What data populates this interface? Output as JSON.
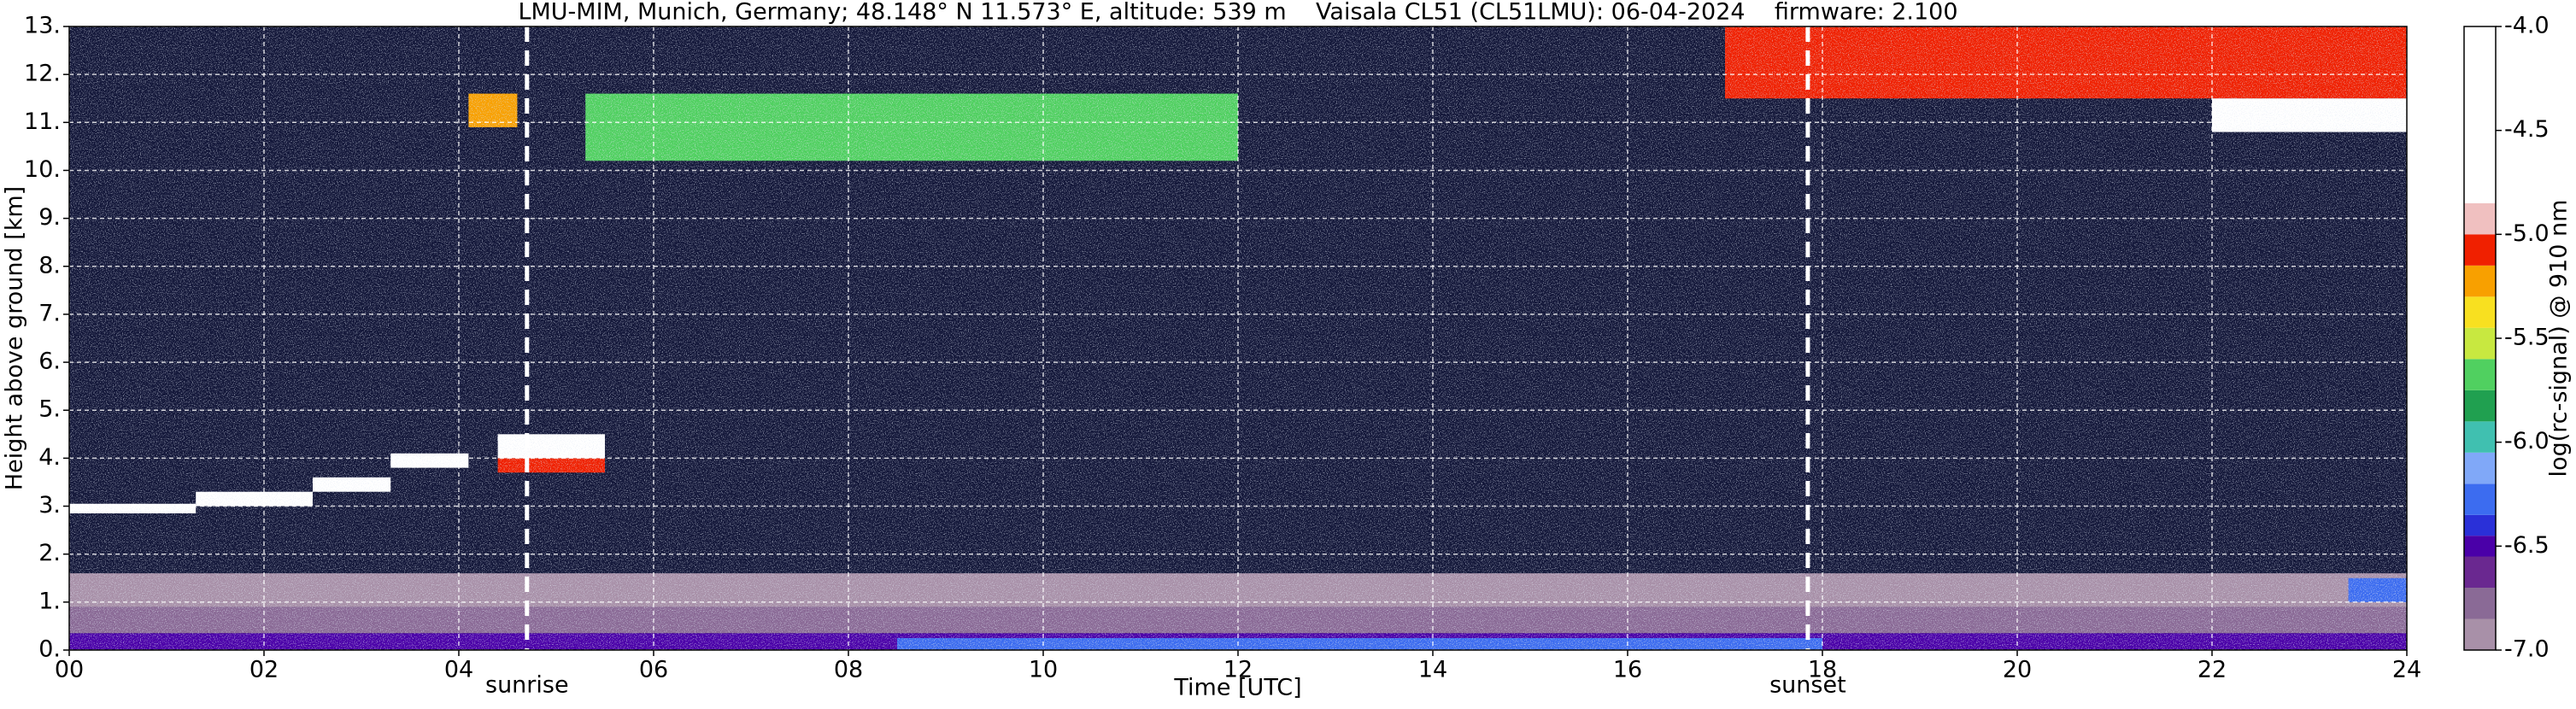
{
  "chart_data": {
    "type": "heatmap",
    "title": "LMU-MIM, Munich, Germany; 48.148° N 11.573° E, altitude: 539 m    Vaisala CL51 (CL51LMU): 06-04-2024    firmware: 2.100",
    "x_label": "Time [UTC]",
    "y_label": "Height above ground [km]",
    "xlim": [
      0,
      24
    ],
    "ylim": [
      0,
      13
    ],
    "xticks": [
      {
        "value": 0,
        "label": "00"
      },
      {
        "value": 2,
        "label": "02"
      },
      {
        "value": 4,
        "label": "04"
      },
      {
        "value": 6,
        "label": "06"
      },
      {
        "value": 8,
        "label": "08"
      },
      10,
      12,
      14,
      16,
      18,
      20,
      22,
      24
    ],
    "yticks": [
      {
        "value": 0,
        "label": "0."
      },
      {
        "value": 1,
        "label": "1."
      },
      {
        "value": 2,
        "label": "2."
      },
      {
        "value": 3,
        "label": "3."
      },
      {
        "value": 4,
        "label": "4."
      },
      {
        "value": 5,
        "label": "5."
      },
      {
        "value": 6,
        "label": "6."
      },
      {
        "value": 7,
        "label": "7."
      },
      {
        "value": 8,
        "label": "8."
      },
      {
        "value": 9,
        "label": "9."
      },
      {
        "value": 10,
        "label": "10."
      },
      {
        "value": 11,
        "label": "11."
      },
      {
        "value": 12,
        "label": "12."
      },
      {
        "value": 13,
        "label": "13."
      }
    ],
    "grid": true,
    "colorbar": {
      "label": "log(rc-signal) @ 910 nm",
      "lim": [
        -7,
        -4
      ],
      "ticks": [
        {
          "value": -4,
          "label": "-4.0"
        },
        {
          "value": -4.5,
          "label": "-4.5"
        },
        {
          "value": -5,
          "label": "-5.0"
        },
        {
          "value": -5.5,
          "label": "-5.5"
        },
        {
          "value": -6,
          "label": "-6.0"
        },
        {
          "value": -6.5,
          "label": "-6.5"
        },
        {
          "value": -7,
          "label": "-7.0"
        }
      ],
      "levels": [
        -7.0,
        -6.85,
        -6.7,
        -6.55,
        -6.45,
        -6.35,
        -6.2,
        -6.05,
        -5.9,
        -5.75,
        -5.6,
        -5.45,
        -5.3,
        -5.15,
        -5.0,
        -4.85,
        -4.0
      ],
      "colors": [
        "#a890a8",
        "#8a6a96",
        "#6a2890",
        "#4a00a8",
        "#2a30d8",
        "#3c6cf0",
        "#80a8f8",
        "#40c0b0",
        "#20a050",
        "#50d060",
        "#c8e840",
        "#f8e020",
        "#f8a000",
        "#f02000",
        "#f0c0c0",
        "#ffffff"
      ]
    },
    "regions": [
      {
        "x": [
          0,
          24
        ],
        "y": [
          0.9,
          1.6
        ],
        "value": -6.95
      },
      {
        "x": [
          0,
          24
        ],
        "y": [
          0.35,
          0.9
        ],
        "value": -6.75
      },
      {
        "x": [
          0,
          24
        ],
        "y": [
          0,
          0.35
        ],
        "value": -6.5
      },
      {
        "x": [
          8.5,
          18
        ],
        "y": [
          0,
          0.25
        ],
        "value": -6.25
      },
      {
        "x": [
          23.4,
          24
        ],
        "y": [
          1.0,
          1.5
        ],
        "value": -6.3
      },
      {
        "x": [
          0,
          1.3
        ],
        "y": [
          2.85,
          3.05
        ],
        "value": -4.5
      },
      {
        "x": [
          1.3,
          2.5
        ],
        "y": [
          3.0,
          3.3
        ],
        "value": -4.5
      },
      {
        "x": [
          2.5,
          3.3
        ],
        "y": [
          3.3,
          3.6
        ],
        "value": -4.5
      },
      {
        "x": [
          3.3,
          4.1
        ],
        "y": [
          3.8,
          4.1
        ],
        "value": -4.5
      },
      {
        "x": [
          4.4,
          5.5
        ],
        "y": [
          3.7,
          4.0
        ],
        "value": -5.1
      },
      {
        "x": [
          4.4,
          5.5
        ],
        "y": [
          4.0,
          4.5
        ],
        "value": -4.3
      },
      {
        "x": [
          4.1,
          4.6
        ],
        "y": [
          10.9,
          11.6
        ],
        "value": -5.2
      },
      {
        "x": [
          5.3,
          12
        ],
        "y": [
          10.2,
          11.6
        ],
        "value": -5.7
      },
      {
        "x": [
          17,
          24
        ],
        "y": [
          11.5,
          13
        ],
        "value": -5.1
      },
      {
        "x": [
          22,
          24
        ],
        "y": [
          10.8,
          11.5
        ],
        "value": -4.6
      }
    ],
    "annotations": [
      {
        "text": "sunrise",
        "x": 4.7
      },
      {
        "text": "sunset",
        "x": 17.85
      }
    ]
  }
}
